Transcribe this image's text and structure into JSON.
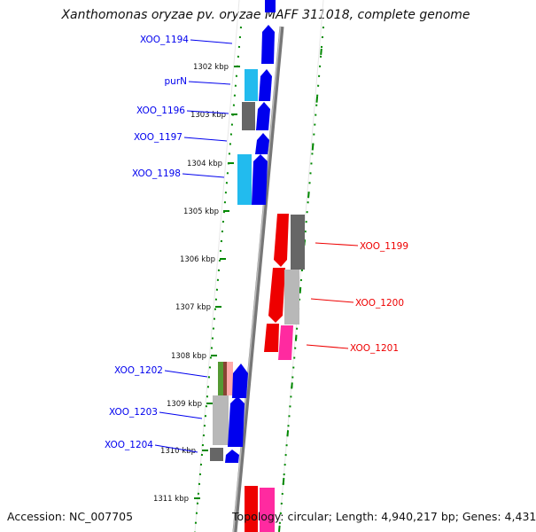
{
  "title": "Xanthomonas oryzae pv. oryzae MAFF 311018, complete genome",
  "footer": {
    "accession": "Accession: NC_007705",
    "summary": "Topology: circular; Length: 4,940,217 bp; Genes: 4,431"
  },
  "colors": {
    "forward_cds": "#0000ee",
    "reverse_cds": "#ee0000",
    "reverse_alt": "#ff2aa0",
    "rna_cyan": "#22bbee",
    "gray": "#666666",
    "light_gray": "#b8b8b8",
    "tick_green": "#008800",
    "backbone": "#777777"
  },
  "ruler": {
    "ticks": [
      {
        "label": "1302 kbp"
      },
      {
        "label": "1303 kbp"
      },
      {
        "label": "1304 kbp"
      },
      {
        "label": "1305 kbp"
      },
      {
        "label": "1306 kbp"
      },
      {
        "label": "1307 kbp"
      },
      {
        "label": "1308 kbp"
      },
      {
        "label": "1309 kbp"
      },
      {
        "label": "1310 kbp"
      },
      {
        "label": "1311 kbp"
      }
    ]
  },
  "genes": {
    "forward": [
      {
        "name": "XOO_1194"
      },
      {
        "name": "purN"
      },
      {
        "name": "XOO_1196"
      },
      {
        "name": "XOO_1197"
      },
      {
        "name": "XOO_1198"
      },
      {
        "name": "XOO_1202"
      },
      {
        "name": "XOO_1203"
      },
      {
        "name": "XOO_1204"
      }
    ],
    "reverse": [
      {
        "name": "XOO_1199"
      },
      {
        "name": "XOO_1200"
      },
      {
        "name": "XOO_1201"
      }
    ]
  }
}
